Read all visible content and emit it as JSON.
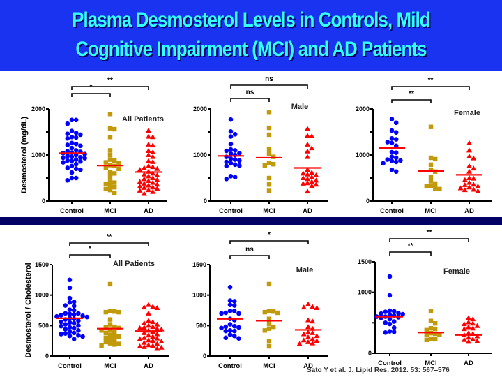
{
  "header": {
    "title_line1": "Plasma Desmosterol Levels in Controls, Mild",
    "title_line2": "Cognitive Impairment (MCI) and AD Patients",
    "background_color": "#1a33f0",
    "title_color": "#33ffff"
  },
  "citation": "Sato Y et al. J. Lipid Res. 2012. 53: 567–576",
  "colors": {
    "control": "#0000ff",
    "mci": "#c09a0a",
    "ad": "#ff0000",
    "mean": "#ff0000"
  },
  "chart_data": [
    {
      "id": "top-all",
      "type": "scatter",
      "title": "All Patients",
      "ylabel": "Desmosterol (mg/dL)",
      "ylim": [
        0,
        2000
      ],
      "yticks": [
        0,
        1000,
        2000
      ],
      "categories": [
        "Control",
        "MCI",
        "AD"
      ],
      "series": [
        {
          "name": "Control",
          "marker": "circle",
          "mean": 1040,
          "values": [
            1760,
            1760,
            1680,
            1520,
            1480,
            1460,
            1440,
            1390,
            1380,
            1360,
            1260,
            1240,
            1220,
            1200,
            1150,
            1100,
            1080,
            1070,
            1050,
            1040,
            1020,
            1000,
            980,
            960,
            950,
            940,
            930,
            900,
            880,
            870,
            860,
            840,
            800,
            760,
            720,
            700,
            680,
            620,
            500,
            500,
            450
          ]
        },
        {
          "name": "MCI",
          "marker": "square",
          "mean": 770,
          "values": [
            1890,
            1580,
            1560,
            1390,
            1100,
            1000,
            900,
            880,
            840,
            820,
            780,
            760,
            720,
            700,
            620,
            600,
            520,
            420,
            400,
            370,
            330,
            300,
            260,
            240,
            180
          ]
        },
        {
          "name": "AD",
          "marker": "triangle",
          "mean": 630,
          "values": [
            1530,
            1400,
            1390,
            1230,
            1210,
            1090,
            1060,
            1000,
            960,
            870,
            850,
            760,
            740,
            720,
            700,
            680,
            640,
            600,
            580,
            560,
            540,
            500,
            480,
            460,
            440,
            420,
            400,
            380,
            360,
            340,
            320,
            300,
            290,
            270,
            240,
            230,
            200,
            160
          ]
        }
      ],
      "comparisons": [
        {
          "from": "Control",
          "to": "MCI",
          "label": "*",
          "level": 1
        },
        {
          "from": "Control",
          "to": "AD",
          "label": "**",
          "level": 2
        }
      ]
    },
    {
      "id": "top-male",
      "type": "scatter",
      "title": "Male",
      "ylabel": "",
      "ylim": [
        0,
        2000
      ],
      "yticks": [
        0,
        1000,
        2000
      ],
      "categories": [
        "Control",
        "MCI",
        "AD"
      ],
      "series": [
        {
          "name": "Control",
          "marker": "circle",
          "mean": 980,
          "values": [
            1770,
            1510,
            1450,
            1400,
            1240,
            1120,
            1100,
            1090,
            1040,
            1030,
            1000,
            960,
            920,
            900,
            880,
            850,
            820,
            790,
            770,
            760,
            540,
            520,
            480
          ]
        },
        {
          "name": "MCI",
          "marker": "square",
          "mean": 940,
          "values": [
            1920,
            1590,
            1440,
            1130,
            1030,
            960,
            830,
            800,
            770,
            500,
            360,
            220
          ]
        },
        {
          "name": "AD",
          "marker": "triangle",
          "mean": 720,
          "values": [
            1570,
            1420,
            1410,
            1230,
            1150,
            1080,
            960,
            680,
            620,
            600,
            580,
            560,
            520,
            500,
            480,
            450,
            420,
            390,
            380,
            360,
            330,
            210
          ]
        }
      ],
      "comparisons": [
        {
          "from": "Control",
          "to": "MCI",
          "label": "ns",
          "level": 1
        },
        {
          "from": "Control",
          "to": "AD",
          "label": "ns",
          "level": 2
        }
      ]
    },
    {
      "id": "top-female",
      "type": "scatter",
      "title": "Female",
      "ylabel": "",
      "ylim": [
        0,
        2000
      ],
      "yticks": [
        0,
        1000,
        2000
      ],
      "categories": [
        "Control",
        "MCI",
        "AD"
      ],
      "series": [
        {
          "name": "Control",
          "marker": "circle",
          "mean": 1150,
          "values": [
            1780,
            1700,
            1530,
            1490,
            1360,
            1340,
            1280,
            1260,
            1200,
            1060,
            1050,
            960,
            940,
            900,
            880,
            870,
            850,
            820,
            680,
            640
          ]
        },
        {
          "name": "MCI",
          "marker": "square",
          "mean": 650,
          "values": [
            1610,
            940,
            910,
            790,
            680,
            640,
            520,
            430,
            380,
            330,
            320,
            270,
            260
          ]
        },
        {
          "name": "AD",
          "marker": "triangle",
          "mean": 570,
          "values": [
            1260,
            1100,
            970,
            930,
            760,
            710,
            640,
            500,
            490,
            460,
            400,
            360,
            350,
            320,
            300,
            280,
            250,
            240,
            220
          ]
        }
      ],
      "comparisons": [
        {
          "from": "Control",
          "to": "MCI",
          "label": "**",
          "level": 1
        },
        {
          "from": "Control",
          "to": "AD",
          "label": "**",
          "level": 2
        }
      ]
    },
    {
      "id": "bottom-all",
      "type": "scatter",
      "title": "All Patients",
      "ylabel": "Desmosterol / Cholesterol",
      "ylim": [
        0,
        1500
      ],
      "yticks": [
        0,
        500,
        1000,
        1500
      ],
      "categories": [
        "Control",
        "MCI",
        "AD"
      ],
      "series": [
        {
          "name": "Control",
          "marker": "circle",
          "mean": 620,
          "values": [
            1250,
            1120,
            950,
            890,
            880,
            830,
            820,
            760,
            750,
            700,
            700,
            690,
            680,
            670,
            660,
            650,
            640,
            620,
            610,
            600,
            580,
            560,
            550,
            540,
            520,
            500,
            490,
            470,
            460,
            440,
            420,
            400,
            380,
            370,
            360,
            340,
            330,
            320,
            280
          ]
        },
        {
          "name": "MCI",
          "marker": "square",
          "mean": 450,
          "values": [
            1180,
            740,
            730,
            720,
            720,
            600,
            520,
            480,
            470,
            460,
            430,
            420,
            400,
            380,
            350,
            330,
            320,
            300,
            280,
            260,
            230,
            210,
            200,
            190,
            170
          ]
        },
        {
          "name": "AD",
          "marker": "triangle",
          "mean": 410,
          "values": [
            840,
            810,
            800,
            790,
            700,
            580,
            560,
            540,
            520,
            500,
            480,
            470,
            460,
            450,
            440,
            420,
            400,
            380,
            360,
            340,
            320,
            300,
            290,
            280,
            260,
            250,
            240,
            220,
            200,
            180,
            170,
            160,
            150,
            140,
            120
          ]
        }
      ],
      "comparisons": [
        {
          "from": "Control",
          "to": "MCI",
          "label": "*",
          "level": 1
        },
        {
          "from": "Control",
          "to": "AD",
          "label": "**",
          "level": 2
        }
      ]
    },
    {
      "id": "bottom-male",
      "type": "scatter",
      "title": "Male",
      "ylabel": "",
      "ylim": [
        0,
        1500
      ],
      "yticks": [
        0,
        500,
        1000,
        1500
      ],
      "categories": [
        "Control",
        "MCI",
        "AD"
      ],
      "series": [
        {
          "name": "Control",
          "marker": "circle",
          "mean": 610,
          "values": [
            1130,
            910,
            900,
            840,
            830,
            740,
            740,
            710,
            700,
            700,
            610,
            590,
            520,
            490,
            480,
            470,
            460,
            420,
            410,
            410,
            350,
            330,
            300,
            290
          ]
        },
        {
          "name": "MCI",
          "marker": "square",
          "mean": 580,
          "values": [
            1180,
            740,
            730,
            720,
            710,
            610,
            530,
            480,
            450,
            420,
            240,
            160
          ]
        },
        {
          "name": "AD",
          "marker": "triangle",
          "mean": 430,
          "values": [
            850,
            810,
            800,
            790,
            590,
            570,
            480,
            450,
            390,
            380,
            360,
            330,
            310,
            280,
            260,
            250,
            230,
            210,
            200
          ]
        }
      ],
      "comparisons": [
        {
          "from": "Control",
          "to": "MCI",
          "label": "ns",
          "level": 1
        },
        {
          "from": "Control",
          "to": "AD",
          "label": "*",
          "level": 2
        }
      ]
    },
    {
      "id": "bottom-female",
      "type": "scatter",
      "title": "Female",
      "ylabel": "",
      "ylim": [
        0,
        1500
      ],
      "yticks": [
        0,
        1000,
        1500
      ],
      "categories": [
        "Control",
        "MCI",
        "AD"
      ],
      "series": [
        {
          "name": "Control",
          "marker": "circle",
          "mean": 600,
          "values": [
            1260,
            950,
            700,
            690,
            680,
            660,
            650,
            640,
            630,
            620,
            600,
            600,
            590,
            580,
            560,
            520,
            500,
            480,
            420,
            360,
            350,
            340
          ]
        },
        {
          "name": "MCI",
          "marker": "square",
          "mean": 340,
          "values": [
            690,
            530,
            490,
            410,
            400,
            380,
            330,
            320,
            310,
            300,
            240,
            230,
            220
          ]
        },
        {
          "name": "AD",
          "marker": "triangle",
          "mean": 300,
          "values": [
            580,
            560,
            510,
            490,
            480,
            450,
            430,
            410,
            400,
            330,
            320,
            300,
            280,
            260,
            230,
            220,
            200,
            190
          ]
        }
      ],
      "comparisons": [
        {
          "from": "Control",
          "to": "MCI",
          "label": "**",
          "level": 1
        },
        {
          "from": "Control",
          "to": "AD",
          "label": "**",
          "level": 2
        }
      ]
    }
  ]
}
